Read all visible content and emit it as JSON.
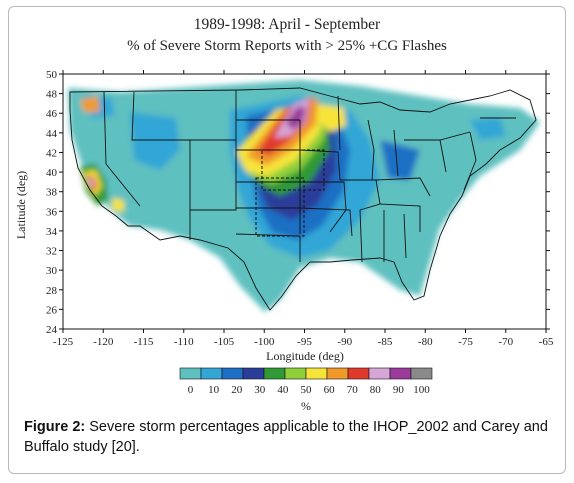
{
  "figure": {
    "title_line1": "1989-1998: April - September",
    "title_line2": "% of Severe Storm Reports with > 25% +CG Flashes",
    "xlabel": "Longitude (deg)",
    "ylabel": "Latitude (deg)",
    "colorbar_unit": "%"
  },
  "chart_data": {
    "type": "heatmap",
    "title": "1989-1998: April - September",
    "subtitle": "% of Severe Storm Reports with > 25% +CG Flashes",
    "xlabel": "Longitude (deg)",
    "ylabel": "Latitude (deg)",
    "xlim": [
      -125,
      -65
    ],
    "ylim": [
      24,
      50
    ],
    "x_ticks": [
      "-125",
      "-120",
      "-115",
      "-110",
      "-105",
      "-100",
      "-95",
      "-90",
      "-85",
      "-80",
      "-75",
      "-70",
      "-65"
    ],
    "y_ticks": [
      "24",
      "26",
      "28",
      "30",
      "32",
      "34",
      "36",
      "38",
      "40",
      "42",
      "44",
      "46",
      "48",
      "50"
    ],
    "colorbar": {
      "label": "%",
      "ticks": [
        "0",
        "10",
        "20",
        "30",
        "40",
        "50",
        "60",
        "70",
        "80",
        "90",
        "100"
      ],
      "colors": [
        "#5fc0c0",
        "#33a6d6",
        "#1d6fc4",
        "#2a3d9a",
        "#2f9a36",
        "#8fcf3a",
        "#f6e43a",
        "#f19a2a",
        "#e03a2a",
        "#d6a6d6",
        "#9a3a9a",
        "#8a8a8a"
      ]
    },
    "maxima": [
      {
        "lon": -97.5,
        "lat": 46,
        "percent": 90
      },
      {
        "lon": -120,
        "lat": 38.5,
        "percent": 80
      }
    ]
  },
  "caption": {
    "label": "Figure 2:",
    "text": " Severe storm percentages applicable to the IHOP_2002 and Carey and Buffalo study [20]."
  }
}
